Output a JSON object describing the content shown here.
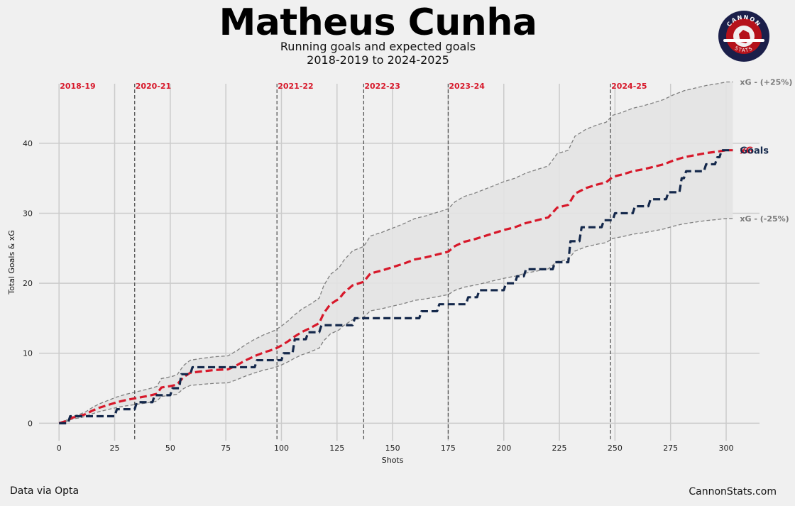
{
  "header": {
    "title": "Matheus Cunha",
    "subtitle_line1": "Running goals and expected goals",
    "subtitle_line2": "2018-2019 to 2024-2025"
  },
  "logo": {
    "top_text": "CANNON",
    "bottom_text": "STATS",
    "colors": {
      "ring": "#1b1f4a",
      "fill": "#b5121b",
      "accent": "#ffffff"
    }
  },
  "footer": {
    "source": "Data via Opta",
    "site": "CannonStats.com"
  },
  "chart_data": {
    "type": "line",
    "xlabel": "Shots",
    "ylabel": "Total Goals & xG",
    "xlim": [
      -9,
      315
    ],
    "ylim": [
      -2.5,
      48.5
    ],
    "xticks": [
      0,
      25,
      50,
      75,
      100,
      125,
      150,
      175,
      200,
      225,
      250,
      275,
      300
    ],
    "yticks": [
      0,
      10,
      20,
      30,
      40
    ],
    "grid": true,
    "seasons": [
      {
        "label": "2018-19",
        "start": 0
      },
      {
        "label": "2020-21",
        "start": 34
      },
      {
        "label": "2021-22",
        "start": 98
      },
      {
        "label": "2022-23",
        "start": 137
      },
      {
        "label": "2023-24",
        "start": 175
      },
      {
        "label": "2024-25",
        "start": 248
      }
    ],
    "band": {
      "upper_label": "xG - (+25%)",
      "lower_label": "xG - (-25%)"
    },
    "series": [
      {
        "name": "xG",
        "color": "#d7182a",
        "points": [
          [
            0,
            0
          ],
          [
            3,
            0.3
          ],
          [
            6,
            0.8
          ],
          [
            9,
            1.0
          ],
          [
            12,
            1.3
          ],
          [
            15,
            1.8
          ],
          [
            18,
            2.2
          ],
          [
            22,
            2.6
          ],
          [
            26,
            3.0
          ],
          [
            30,
            3.3
          ],
          [
            35,
            3.6
          ],
          [
            40,
            3.9
          ],
          [
            44,
            4.2
          ],
          [
            46,
            5.1
          ],
          [
            50,
            5.3
          ],
          [
            53,
            5.5
          ],
          [
            56,
            6.6
          ],
          [
            59,
            7.2
          ],
          [
            64,
            7.4
          ],
          [
            70,
            7.6
          ],
          [
            76,
            7.7
          ],
          [
            80,
            8.3
          ],
          [
            84,
            9.0
          ],
          [
            88,
            9.6
          ],
          [
            92,
            10.1
          ],
          [
            97,
            10.6
          ],
          [
            100,
            11.1
          ],
          [
            103,
            11.7
          ],
          [
            106,
            12.4
          ],
          [
            109,
            13.0
          ],
          [
            113,
            13.6
          ],
          [
            117,
            14.3
          ],
          [
            119,
            15.7
          ],
          [
            122,
            17.0
          ],
          [
            126,
            17.8
          ],
          [
            128,
            18.6
          ],
          [
            132,
            19.7
          ],
          [
            137,
            20.2
          ],
          [
            140,
            21.4
          ],
          [
            145,
            21.8
          ],
          [
            150,
            22.3
          ],
          [
            155,
            22.8
          ],
          [
            160,
            23.4
          ],
          [
            165,
            23.7
          ],
          [
            170,
            24.1
          ],
          [
            175,
            24.5
          ],
          [
            178,
            25.3
          ],
          [
            182,
            25.9
          ],
          [
            187,
            26.3
          ],
          [
            191,
            26.7
          ],
          [
            196,
            27.2
          ],
          [
            200,
            27.6
          ],
          [
            205,
            28.0
          ],
          [
            210,
            28.6
          ],
          [
            215,
            29.0
          ],
          [
            220,
            29.4
          ],
          [
            224,
            30.8
          ],
          [
            229,
            31.2
          ],
          [
            232,
            32.8
          ],
          [
            237,
            33.6
          ],
          [
            242,
            34.1
          ],
          [
            246,
            34.4
          ],
          [
            249,
            35.2
          ],
          [
            254,
            35.6
          ],
          [
            258,
            36.0
          ],
          [
            263,
            36.3
          ],
          [
            267,
            36.6
          ],
          [
            272,
            37.0
          ],
          [
            276,
            37.5
          ],
          [
            281,
            38.0
          ],
          [
            286,
            38.3
          ],
          [
            291,
            38.6
          ],
          [
            296,
            38.8
          ],
          [
            300,
            39.0
          ],
          [
            303,
            39.0
          ]
        ]
      },
      {
        "name": "Goals",
        "color": "#14284b",
        "points": [
          [
            0,
            0
          ],
          [
            4,
            0
          ],
          [
            5,
            1
          ],
          [
            25,
            1
          ],
          [
            26,
            2
          ],
          [
            34,
            2
          ],
          [
            35,
            3
          ],
          [
            42,
            3
          ],
          [
            43,
            4
          ],
          [
            50,
            4
          ],
          [
            51,
            5
          ],
          [
            54,
            5
          ],
          [
            55,
            7
          ],
          [
            59,
            7
          ],
          [
            60,
            8
          ],
          [
            72,
            8
          ],
          [
            73,
            8
          ],
          [
            88,
            8
          ],
          [
            89,
            9
          ],
          [
            100,
            9
          ],
          [
            101,
            10
          ],
          [
            105,
            10
          ],
          [
            106,
            12
          ],
          [
            111,
            12
          ],
          [
            112,
            13
          ],
          [
            117,
            13
          ],
          [
            118,
            14
          ],
          [
            132,
            14
          ],
          [
            133,
            15
          ],
          [
            162,
            15
          ],
          [
            163,
            16
          ],
          [
            170,
            16
          ],
          [
            171,
            17
          ],
          [
            183,
            17
          ],
          [
            184,
            18
          ],
          [
            188,
            18
          ],
          [
            189,
            19
          ],
          [
            200,
            19
          ],
          [
            201,
            20
          ],
          [
            205,
            20
          ],
          [
            206,
            21
          ],
          [
            209,
            21
          ],
          [
            210,
            22
          ],
          [
            222,
            22
          ],
          [
            223,
            23
          ],
          [
            229,
            23
          ],
          [
            230,
            26
          ],
          [
            234,
            26
          ],
          [
            235,
            28
          ],
          [
            244,
            28
          ],
          [
            245,
            29
          ],
          [
            249,
            29
          ],
          [
            250,
            30
          ],
          [
            258,
            30
          ],
          [
            259,
            31
          ],
          [
            265,
            31
          ],
          [
            266,
            32
          ],
          [
            273,
            32
          ],
          [
            274,
            33
          ],
          [
            279,
            33
          ],
          [
            280,
            35
          ],
          [
            281,
            35
          ],
          [
            282,
            36
          ],
          [
            290,
            36
          ],
          [
            291,
            37
          ],
          [
            295,
            37
          ],
          [
            296,
            38
          ],
          [
            297,
            38
          ],
          [
            298,
            39
          ],
          [
            303,
            39
          ]
        ]
      }
    ]
  }
}
